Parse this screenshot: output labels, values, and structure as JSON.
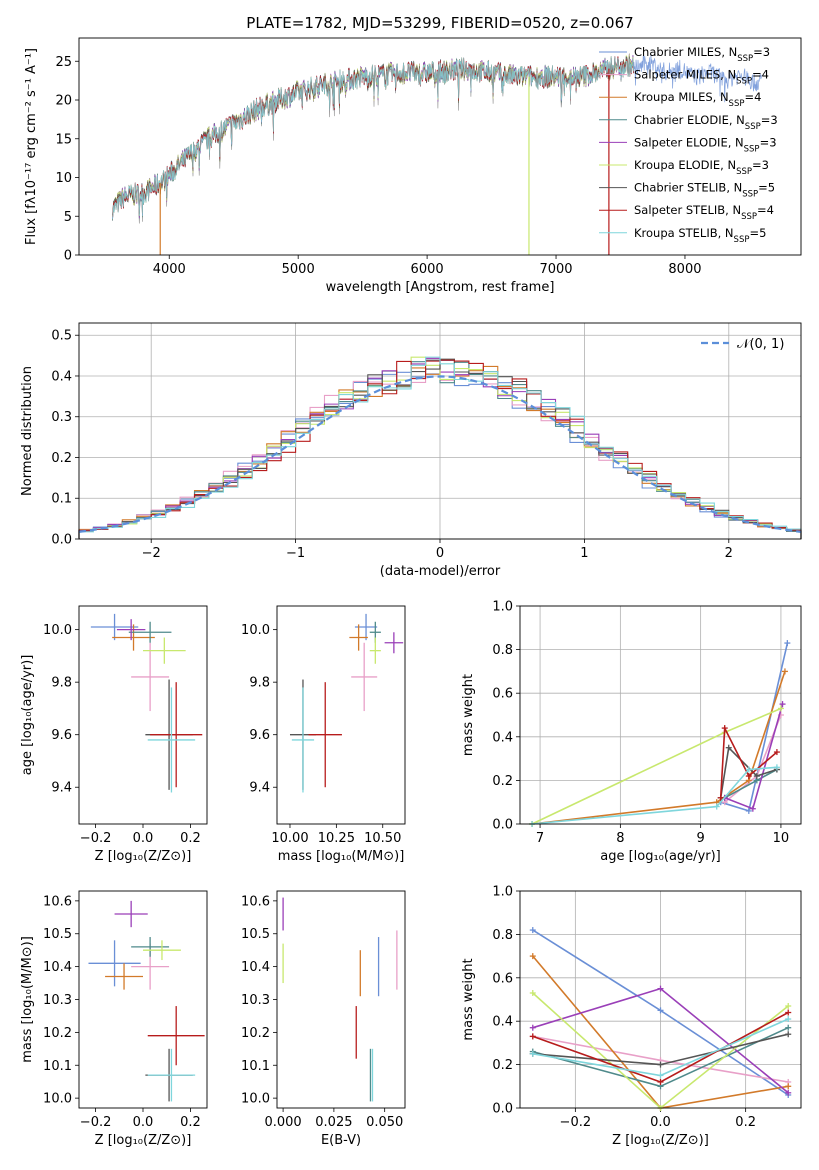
{
  "title": "PLATE=1782, MJD=53299, FIBERID=0520, z=0.067",
  "colors": [
    "#6a8fd6",
    "#e8a0c8",
    "#d27a2a",
    "#4f8a8b",
    "#9a3fb8",
    "#c8e86e",
    "#555555",
    "#b71c1c",
    "#7fd6dc"
  ],
  "chart_data": [
    {
      "id": "spectrum",
      "type": "line",
      "xlabel": "wavelength [Angstrom, rest frame]",
      "ylabel": "Flux [fλ10⁻¹⁷ erg cm⁻² s⁻¹ A⁻¹]",
      "xlim": [
        3300,
        8900
      ],
      "ylim": [
        0,
        28
      ],
      "xticks": [
        4000,
        5000,
        6000,
        7000,
        8000
      ],
      "yticks": [
        0,
        5,
        10,
        15,
        20,
        25
      ],
      "legend_position": "upper right",
      "series": [
        {
          "name": "Chabrier MILES, N",
          "sub": "SSP",
          "suffix": "=3"
        },
        {
          "name": "Salpeter MILES, N",
          "sub": "SSP",
          "suffix": "=4"
        },
        {
          "name": "Kroupa MILES, N",
          "sub": "SSP",
          "suffix": "=4"
        },
        {
          "name": "Chabrier ELODIE, N",
          "sub": "SSP",
          "suffix": "=3"
        },
        {
          "name": "Salpeter ELODIE, N",
          "sub": "SSP",
          "suffix": "=3"
        },
        {
          "name": "Kroupa ELODIE, N",
          "sub": "SSP",
          "suffix": "=3"
        },
        {
          "name": "Chabrier STELIB, N",
          "sub": "SSP",
          "suffix": "=5"
        },
        {
          "name": "Salpeter STELIB, N",
          "sub": "SSP",
          "suffix": "=4"
        },
        {
          "name": "Kroupa STELIB, N",
          "sub": "SSP",
          "suffix": "=5"
        }
      ],
      "continuum": [
        [
          3560,
          6
        ],
        [
          3650,
          7.5
        ],
        [
          3800,
          8
        ],
        [
          3950,
          9.5
        ],
        [
          4100,
          12
        ],
        [
          4300,
          15
        ],
        [
          4500,
          17
        ],
        [
          4700,
          19
        ],
        [
          5000,
          21
        ],
        [
          5200,
          22
        ],
        [
          5500,
          23
        ],
        [
          5800,
          23.5
        ],
        [
          6000,
          23.5
        ],
        [
          6300,
          24
        ],
        [
          6500,
          23.5
        ],
        [
          6700,
          23
        ],
        [
          7000,
          23
        ],
        [
          7200,
          23
        ],
        [
          7500,
          24.5
        ],
        [
          7700,
          24.5
        ],
        [
          8000,
          23.5
        ],
        [
          8300,
          23
        ],
        [
          8600,
          22.5
        ]
      ]
    },
    {
      "id": "residuals",
      "type": "histogram",
      "xlabel": "(data-model)/error",
      "ylabel": "Normed distribution",
      "xlim": [
        -2.5,
        2.5
      ],
      "ylim": [
        0,
        0.53
      ],
      "xticks": [
        -2,
        -1,
        0,
        1,
        2
      ],
      "yticks": [
        0.0,
        0.1,
        0.2,
        0.3,
        0.4,
        0.5
      ],
      "legend": "𝒩(0, 1)",
      "reference_curve": "N(0,1)",
      "bin_width": 0.1
    },
    {
      "id": "age_vs_Z",
      "type": "scatter",
      "xlabel": "Z [log₁₀(Z/Z⊙)]",
      "ylabel": "age  [log₁₀(age/yr)]",
      "xlim": [
        -0.27,
        0.27
      ],
      "ylim": [
        9.26,
        10.09
      ],
      "xticks": [
        -0.2,
        0.0,
        0.2
      ],
      "yticks": [
        9.4,
        9.6,
        9.8,
        10.0
      ],
      "points": [
        {
          "x": -0.12,
          "xerr": 0.1,
          "y": 10.01,
          "yerr": 0.05,
          "c": 0
        },
        {
          "x": 0.03,
          "xerr": 0.08,
          "y": 9.82,
          "yerr": 0.13,
          "c": 1
        },
        {
          "x": -0.04,
          "xerr": 0.09,
          "y": 9.97,
          "yerr": 0.05,
          "c": 2
        },
        {
          "x": 0.03,
          "xerr": 0.09,
          "y": 9.99,
          "yerr": 0.04,
          "c": 3
        },
        {
          "x": -0.05,
          "xerr": 0.06,
          "y": 10.0,
          "yerr": 0.04,
          "c": 4
        },
        {
          "x": 0.09,
          "xerr": 0.09,
          "y": 9.92,
          "yerr": 0.05,
          "c": 5
        },
        {
          "x": 0.11,
          "xerr": 0.1,
          "y": 9.6,
          "yerr": 0.21,
          "c": 6
        },
        {
          "x": 0.14,
          "xerr": 0.11,
          "y": 9.6,
          "yerr": 0.2,
          "c": 7
        },
        {
          "x": 0.12,
          "xerr": 0.1,
          "y": 9.58,
          "yerr": 0.2,
          "c": 8
        }
      ]
    },
    {
      "id": "age_vs_mass",
      "type": "scatter",
      "xlabel": "mass [log₁₀(M/M⊙)]",
      "ylabel": "",
      "xlim": [
        9.93,
        10.62
      ],
      "ylim": [
        9.26,
        10.09
      ],
      "xticks": [
        10.0,
        10.25,
        10.5
      ],
      "yticks": [
        9.4,
        9.6,
        9.8,
        10.0
      ],
      "points": [
        {
          "x": 10.41,
          "xerr": 0.06,
          "y": 10.01,
          "yerr": 0.05,
          "c": 0
        },
        {
          "x": 10.4,
          "xerr": 0.07,
          "y": 9.82,
          "yerr": 0.13,
          "c": 1
        },
        {
          "x": 10.37,
          "xerr": 0.05,
          "y": 9.97,
          "yerr": 0.05,
          "c": 2
        },
        {
          "x": 10.46,
          "xerr": 0.03,
          "y": 9.99,
          "yerr": 0.04,
          "c": 3
        },
        {
          "x": 10.56,
          "xerr": 0.05,
          "y": 9.95,
          "yerr": 0.04,
          "c": 4
        },
        {
          "x": 10.46,
          "xerr": 0.03,
          "y": 9.92,
          "yerr": 0.05,
          "c": 5
        },
        {
          "x": 10.07,
          "xerr": 0.07,
          "y": 9.6,
          "yerr": 0.21,
          "c": 6
        },
        {
          "x": 10.19,
          "xerr": 0.09,
          "y": 9.6,
          "yerr": 0.2,
          "c": 7
        },
        {
          "x": 10.07,
          "xerr": 0.06,
          "y": 9.58,
          "yerr": 0.2,
          "c": 8
        }
      ]
    },
    {
      "id": "mw_vs_age",
      "type": "line",
      "xlabel": "age  [log₁₀(age/yr)]",
      "ylabel": "mass weight",
      "xlim": [
        6.75,
        10.25
      ],
      "ylim": [
        0,
        1.0
      ],
      "xticks": [
        7,
        8,
        9,
        10
      ],
      "yticks": [
        0.0,
        0.2,
        0.4,
        0.6,
        0.8,
        1.0
      ],
      "series": [
        {
          "c": 0,
          "pts": [
            [
              9.25,
              0.1
            ],
            [
              9.6,
              0.06
            ],
            [
              10.08,
              0.83
            ]
          ]
        },
        {
          "c": 1,
          "pts": [
            [
              9.3,
              0.1
            ],
            [
              9.7,
              0.22
            ],
            [
              10.0,
              0.5
            ]
          ]
        },
        {
          "c": 2,
          "pts": [
            [
              6.9,
              0.0
            ],
            [
              9.2,
              0.1
            ],
            [
              9.6,
              0.2
            ],
            [
              10.05,
              0.7
            ]
          ]
        },
        {
          "c": 3,
          "pts": [
            [
              9.3,
              0.12
            ],
            [
              9.7,
              0.2
            ],
            [
              9.95,
              0.25
            ]
          ]
        },
        {
          "c": 4,
          "pts": [
            [
              9.3,
              0.12
            ],
            [
              9.65,
              0.07
            ],
            [
              10.02,
              0.55
            ]
          ]
        },
        {
          "c": 5,
          "pts": [
            [
              6.9,
              0.0
            ],
            [
              9.3,
              0.42
            ],
            [
              10.0,
              0.53
            ]
          ]
        },
        {
          "c": 6,
          "pts": [
            [
              9.25,
              0.12
            ],
            [
              9.35,
              0.35
            ],
            [
              9.7,
              0.22
            ],
            [
              9.95,
              0.25
            ]
          ]
        },
        {
          "c": 7,
          "pts": [
            [
              9.25,
              0.12
            ],
            [
              9.3,
              0.44
            ],
            [
              9.6,
              0.22
            ],
            [
              9.95,
              0.33
            ]
          ]
        },
        {
          "c": 8,
          "pts": [
            [
              6.9,
              0.0
            ],
            [
              9.2,
              0.08
            ],
            [
              9.6,
              0.25
            ],
            [
              9.95,
              0.26
            ]
          ]
        }
      ]
    },
    {
      "id": "mass_vs_Z",
      "type": "scatter",
      "xlabel": "Z [log₁₀(Z/Z⊙)]",
      "ylabel": "mass [log₁₀(M/M⊙)]",
      "xlim": [
        -0.27,
        0.27
      ],
      "ylim": [
        9.97,
        10.63
      ],
      "xticks": [
        -0.2,
        0.0,
        0.2
      ],
      "yticks": [
        10.0,
        10.1,
        10.2,
        10.3,
        10.4,
        10.5,
        10.6
      ],
      "points": [
        {
          "x": -0.12,
          "xerr": 0.11,
          "y": 10.41,
          "yerr": 0.07,
          "c": 0
        },
        {
          "x": 0.03,
          "xerr": 0.08,
          "y": 10.4,
          "yerr": 0.07,
          "c": 1
        },
        {
          "x": -0.08,
          "xerr": 0.08,
          "y": 10.37,
          "yerr": 0.04,
          "c": 2
        },
        {
          "x": 0.03,
          "xerr": 0.08,
          "y": 10.46,
          "yerr": 0.03,
          "c": 3
        },
        {
          "x": -0.05,
          "xerr": 0.07,
          "y": 10.56,
          "yerr": 0.04,
          "c": 4
        },
        {
          "x": 0.08,
          "xerr": 0.08,
          "y": 10.45,
          "yerr": 0.03,
          "c": 5
        },
        {
          "x": 0.11,
          "xerr": 0.1,
          "y": 10.07,
          "yerr": 0.08,
          "c": 6
        },
        {
          "x": 0.14,
          "xerr": 0.12,
          "y": 10.19,
          "yerr": 0.09,
          "c": 7
        },
        {
          "x": 0.12,
          "xerr": 0.1,
          "y": 10.07,
          "yerr": 0.08,
          "c": 8
        }
      ]
    },
    {
      "id": "mass_vs_EBV",
      "type": "scatter",
      "xlabel": "E(B-V)",
      "ylabel": "",
      "xlim": [
        -0.003,
        0.06
      ],
      "ylim": [
        9.97,
        10.63
      ],
      "xticks": [
        0.0,
        0.025,
        0.05
      ],
      "yticks": [
        10.0,
        10.1,
        10.2,
        10.3,
        10.4,
        10.5,
        10.6
      ],
      "points": [
        {
          "x": 0.0,
          "y": 10.41,
          "yerr": 0.06,
          "c": 5
        },
        {
          "x": 0.0,
          "y": 10.56,
          "yerr": 0.05,
          "c": 4
        },
        {
          "x": 0.038,
          "y": 10.38,
          "yerr": 0.07,
          "c": 2
        },
        {
          "x": 0.036,
          "y": 10.2,
          "yerr": 0.08,
          "c": 7
        },
        {
          "x": 0.044,
          "y": 10.07,
          "yerr": 0.08,
          "c": 8
        },
        {
          "x": 0.043,
          "y": 10.07,
          "yerr": 0.08,
          "c": 3
        },
        {
          "x": 0.047,
          "y": 10.4,
          "yerr": 0.09,
          "c": 0
        },
        {
          "x": 0.056,
          "y": 10.42,
          "yerr": 0.09,
          "c": 1
        }
      ]
    },
    {
      "id": "mw_vs_Z",
      "type": "line",
      "xlabel": "Z [log₁₀(Z/Z⊙)]",
      "ylabel": "mass weight",
      "xlim": [
        -0.33,
        0.33
      ],
      "ylim": [
        0,
        1.0
      ],
      "xticks": [
        -0.2,
        0.0,
        0.2
      ],
      "yticks": [
        0.0,
        0.2,
        0.4,
        0.6,
        0.8,
        1.0
      ],
      "series": [
        {
          "c": 0,
          "pts": [
            [
              -0.3,
              0.82
            ],
            [
              0.0,
              0.45
            ],
            [
              0.3,
              0.06
            ]
          ]
        },
        {
          "c": 1,
          "pts": [
            [
              -0.3,
              0.33
            ],
            [
              0.0,
              0.22
            ],
            [
              0.3,
              0.12
            ]
          ]
        },
        {
          "c": 2,
          "pts": [
            [
              -0.3,
              0.7
            ],
            [
              0.0,
              0.0
            ],
            [
              0.3,
              0.1
            ]
          ]
        },
        {
          "c": 3,
          "pts": [
            [
              -0.3,
              0.26
            ],
            [
              0.0,
              0.1
            ],
            [
              0.3,
              0.37
            ]
          ]
        },
        {
          "c": 4,
          "pts": [
            [
              -0.3,
              0.37
            ],
            [
              0.0,
              0.55
            ],
            [
              0.3,
              0.07
            ]
          ]
        },
        {
          "c": 5,
          "pts": [
            [
              -0.3,
              0.53
            ],
            [
              0.0,
              0.0
            ],
            [
              0.3,
              0.47
            ]
          ]
        },
        {
          "c": 6,
          "pts": [
            [
              -0.3,
              0.25
            ],
            [
              0.0,
              0.2
            ],
            [
              0.3,
              0.34
            ]
          ]
        },
        {
          "c": 7,
          "pts": [
            [
              -0.3,
              0.33
            ],
            [
              0.0,
              0.12
            ],
            [
              0.3,
              0.44
            ]
          ]
        },
        {
          "c": 8,
          "pts": [
            [
              -0.3,
              0.25
            ],
            [
              0.0,
              0.15
            ],
            [
              0.3,
              0.41
            ]
          ]
        }
      ]
    }
  ]
}
